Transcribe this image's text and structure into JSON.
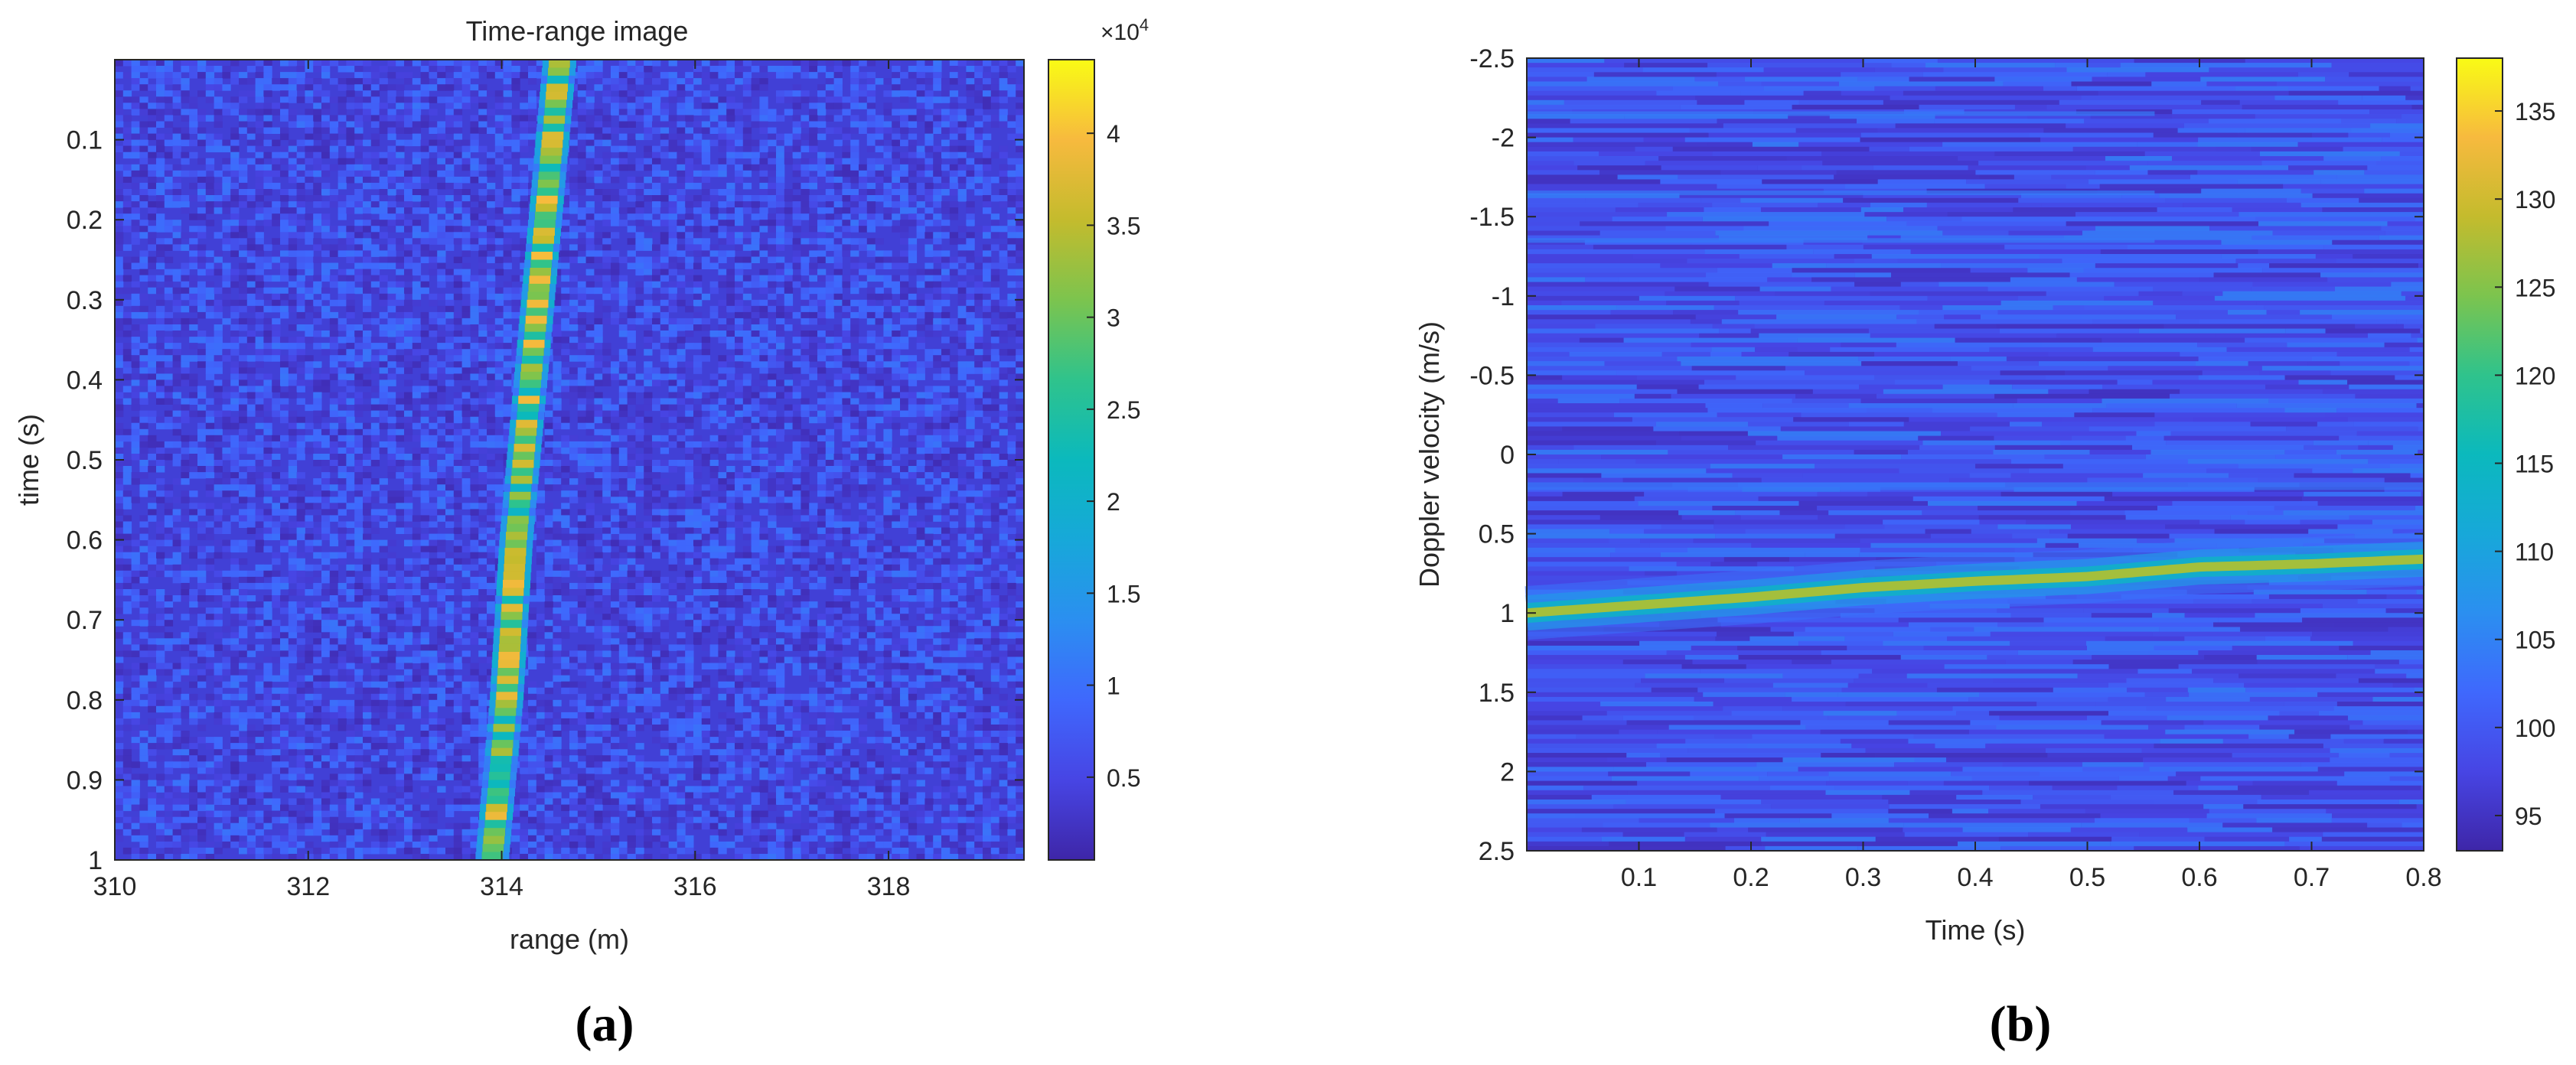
{
  "chart_data": [
    {
      "type": "heatmap",
      "title": "Time-range image",
      "xlabel": "range (m)",
      "ylabel": "time (s)",
      "xlim": [
        310,
        319.4
      ],
      "ylim": [
        0,
        1
      ],
      "y_reversed": true,
      "x_ticks": [
        "310",
        "312",
        "314",
        "316",
        "318"
      ],
      "y_ticks": [
        "0.1",
        "0.2",
        "0.3",
        "0.4",
        "0.5",
        "0.6",
        "0.7",
        "0.8",
        "0.9",
        "1"
      ],
      "colorbar": {
        "ticks": [
          "0.5",
          "1",
          "1.5",
          "2",
          "2.5",
          "3",
          "3.5",
          "4"
        ],
        "multiplier": "×10",
        "exponent": "4",
        "range": [
          0.05,
          4.4
        ]
      },
      "background_level": 0.6,
      "target_track": {
        "time": [
          0.0,
          0.2,
          0.4,
          0.6,
          0.8,
          1.0
        ],
        "range": [
          314.6,
          314.45,
          314.3,
          314.15,
          314.05,
          313.9
        ],
        "peak_level": 3.8
      },
      "grid": false,
      "panel_label": "(a)"
    },
    {
      "type": "heatmap",
      "title": "",
      "xlabel": "Time (s)",
      "ylabel": "Doppler velocity (m/s)",
      "xlim": [
        0,
        0.8
      ],
      "ylim": [
        -2.5,
        2.5
      ],
      "y_reversed": true,
      "x_ticks": [
        "0.1",
        "0.2",
        "0.3",
        "0.4",
        "0.5",
        "0.6",
        "0.7",
        "0.8"
      ],
      "y_ticks": [
        "-2.5",
        "-2",
        "-1.5",
        "-1",
        "-0.5",
        "0",
        "0.5",
        "1",
        "1.5",
        "2",
        "2.5"
      ],
      "colorbar": {
        "ticks": [
          "95",
          "100",
          "105",
          "110",
          "115",
          "120",
          "125",
          "130",
          "135"
        ],
        "range": [
          93,
          138
        ]
      },
      "background_level": 98,
      "doppler_track": {
        "time": [
          0.0,
          0.1,
          0.2,
          0.3,
          0.4,
          0.5,
          0.6,
          0.7,
          0.8
        ],
        "velocity": [
          1.0,
          0.95,
          0.9,
          0.84,
          0.8,
          0.77,
          0.71,
          0.69,
          0.66
        ],
        "peak_level": 127
      },
      "grid": false,
      "panel_label": "(b)"
    }
  ]
}
